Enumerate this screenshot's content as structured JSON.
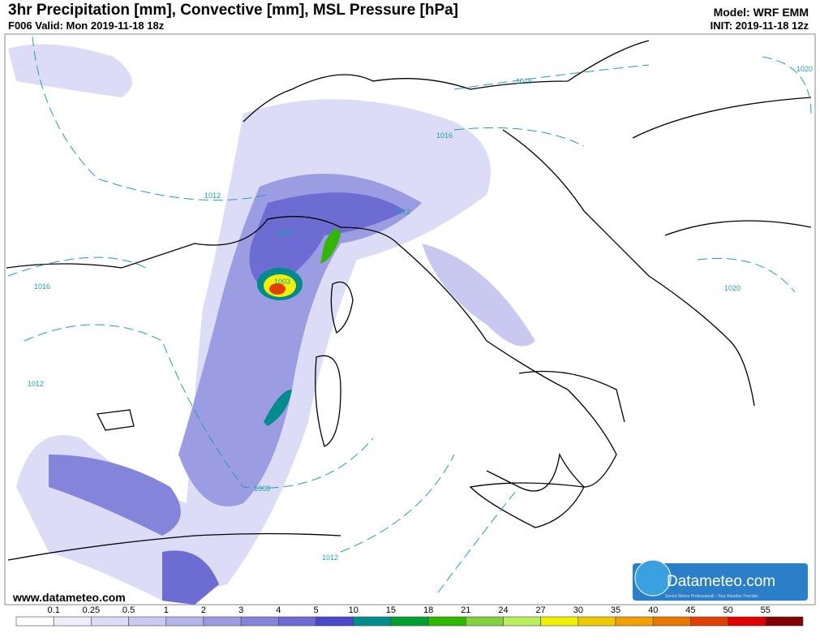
{
  "header": {
    "title": "3hr Precipitation [mm], Convective [mm], MSL Pressure [hPa]",
    "valid": "F006 Valid: Mon 2019-11-18 18z",
    "model": "Model: WRF EMM",
    "init": "INIT: 2019-11-18 12z"
  },
  "isobar_labels": [
    "1016",
    "1020",
    "1016",
    "1012",
    "1012",
    "1008",
    "1016",
    "1020",
    "1003",
    "1012",
    "1008",
    "1012"
  ],
  "website": "www.datameteo.com",
  "logo": {
    "name": "Datameteo.com",
    "tagline": "Servizi Meteo Professionali - Your Weather Provider"
  },
  "colorbar": {
    "levels": [
      0.1,
      0.25,
      0.5,
      1,
      2,
      3,
      4,
      5,
      10,
      15,
      18,
      21,
      24,
      27,
      30,
      35,
      40,
      45,
      50,
      55
    ],
    "colors": [
      "#ffffff",
      "#eeeefa",
      "#dcdcf6",
      "#c8c8f0",
      "#b4b4ea",
      "#9c9ce2",
      "#8484da",
      "#6c6cd2",
      "#4848c8",
      "#008c8c",
      "#00a030",
      "#30b800",
      "#80d040",
      "#b8ee60",
      "#f0f000",
      "#f0c800",
      "#f0a000",
      "#e87800",
      "#e04000",
      "#e00000",
      "#800000"
    ]
  }
}
